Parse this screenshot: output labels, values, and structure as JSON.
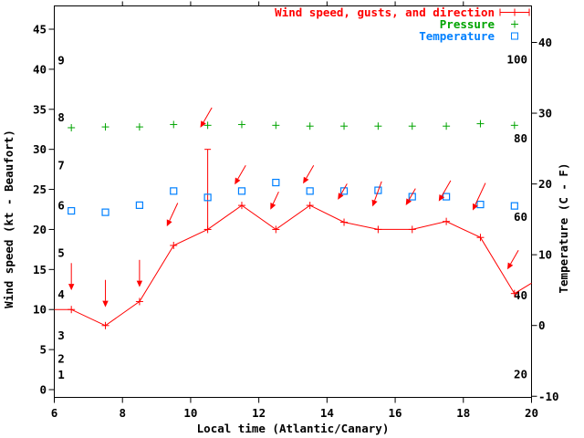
{
  "chart_data": {
    "type": "line",
    "title": "",
    "xlabel": "Local time (Atlantic/Canary)",
    "x_range": [
      6,
      20
    ],
    "x_ticks": [
      6,
      8,
      10,
      12,
      14,
      16,
      18,
      20
    ],
    "left_axis": {
      "label": "Wind speed (kt - Beaufort)",
      "range_kt": [
        0,
        45
      ],
      "ticks_kt": [
        0,
        5,
        10,
        15,
        20,
        25,
        30,
        35,
        40,
        45
      ],
      "beaufort_labels": [
        {
          "beaufort": "1",
          "at_kt": 1.9
        },
        {
          "beaufort": "2",
          "at_kt": 3.9
        },
        {
          "beaufort": "3",
          "at_kt": 6.8
        },
        {
          "beaufort": "4",
          "at_kt": 11.9
        },
        {
          "beaufort": "5",
          "at_kt": 17.1
        },
        {
          "beaufort": "6",
          "at_kt": 23.0
        },
        {
          "beaufort": "7",
          "at_kt": 28.0
        },
        {
          "beaufort": "8",
          "at_kt": 34.0
        },
        {
          "beaufort": "9",
          "at_kt": 41.1
        }
      ]
    },
    "right_axis": {
      "label": "Temperature (C - F)",
      "range_c": [
        -10,
        40
      ],
      "ticks_c": [
        40,
        30,
        20,
        10,
        0,
        -10
      ],
      "fahrenheit_labels": [
        "100",
        "80",
        "60",
        "40",
        "20"
      ]
    },
    "legend": [
      {
        "label": "Wind speed, gusts, and direction",
        "color": "#ff0000",
        "marker": "errorbar-plus"
      },
      {
        "label": "Pressure",
        "color": "#00a400",
        "marker": "plus"
      },
      {
        "label": "Temperature",
        "color": "#0080ff",
        "marker": "open-square"
      }
    ],
    "x": [
      6.5,
      7.5,
      8.5,
      9.5,
      10.5,
      11.5,
      12.5,
      13.5,
      14.5,
      15.5,
      16.5,
      17.5,
      18.5,
      19.5
    ],
    "series": [
      {
        "name": "Wind speed, gusts, and direction",
        "color": "#ff0000",
        "style": "line+plus-markers+gust-errorbars",
        "values_kt": [
          10,
          8,
          11,
          18,
          20,
          23,
          20,
          23,
          20.9,
          20,
          20,
          21,
          19,
          12
        ],
        "gust_high_kt": [
          null,
          null,
          null,
          null,
          30,
          null,
          null,
          null,
          null,
          null,
          null,
          null,
          null,
          null
        ],
        "line_extends_to": {
          "left": {
            "x": 6.0,
            "kt": 10.0
          },
          "right": {
            "x": 20.0,
            "kt": 13.3
          }
        }
      },
      {
        "name": "Pressure",
        "color": "#00a400",
        "style": "plus-markers",
        "axis_note": "no pressure scale displayed; points plotted near 33 on the left kt axis",
        "plotted_kt_axis": [
          32.7,
          32.8,
          32.8,
          33.1,
          33.0,
          33.1,
          33.0,
          32.9,
          32.9,
          32.9,
          32.9,
          32.9,
          33.2,
          33.0
        ]
      },
      {
        "name": "Temperature",
        "color": "#0080ff",
        "style": "open-square-markers",
        "values_c": [
          16.2,
          16.0,
          17.0,
          19.0,
          18.1,
          19.0,
          20.2,
          19.0,
          19.0,
          19.1,
          18.2,
          18.2,
          17.1,
          16.9
        ]
      }
    ],
    "wind_direction_arrows": [
      {
        "h": 6.5,
        "from_deg": 0,
        "tail_kt": 15.8,
        "head_kt": 13.2
      },
      {
        "h": 7.5,
        "from_deg": 0,
        "tail_kt": 13.7,
        "head_kt": 11.1
      },
      {
        "h": 8.5,
        "from_deg": 0,
        "tail_kt": 16.2,
        "head_kt": 13.6
      },
      {
        "h": 9.5,
        "from_deg": 25,
        "tail_kt": 23.3,
        "head_kt": 21.1
      },
      {
        "h": 10.5,
        "from_deg": 30,
        "tail_kt": 35.2,
        "head_kt": 33.4
      },
      {
        "h": 11.5,
        "from_deg": 30,
        "tail_kt": 28.0,
        "head_kt": 26.3
      },
      {
        "h": 12.5,
        "from_deg": 25,
        "tail_kt": 24.7,
        "head_kt": 23.2
      },
      {
        "h": 13.5,
        "from_deg": 30,
        "tail_kt": 28.0,
        "head_kt": 26.4
      },
      {
        "h": 14.5,
        "from_deg": 30,
        "tail_kt": 25.7,
        "head_kt": 24.4
      },
      {
        "h": 15.5,
        "from_deg": 20,
        "tail_kt": 26.0,
        "head_kt": 23.6
      },
      {
        "h": 16.5,
        "from_deg": 30,
        "tail_kt": 25.1,
        "head_kt": 23.7
      },
      {
        "h": 17.5,
        "from_deg": 30,
        "tail_kt": 26.1,
        "head_kt": 24.2
      },
      {
        "h": 18.5,
        "from_deg": 25,
        "tail_kt": 25.8,
        "head_kt": 23.1
      },
      {
        "h": 19.5,
        "from_deg": 30,
        "tail_kt": 17.4,
        "head_kt": 15.7
      }
    ],
    "grid": false,
    "legend_position": "top-right-inside"
  },
  "colors": {
    "wind": "#ff0000",
    "pressure": "#00a400",
    "temperature": "#0080ff",
    "axis": "#000000",
    "background": "#ffffff"
  }
}
